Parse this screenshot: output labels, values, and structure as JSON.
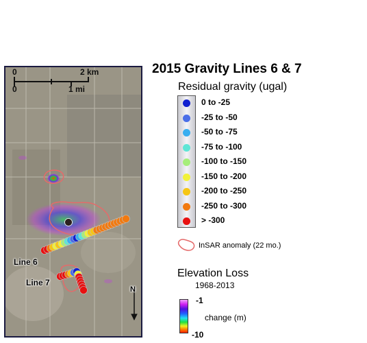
{
  "title": "2015 Gravity Lines 6 & 7",
  "map": {
    "scale_km_start": "0",
    "scale_km_end": "2 km",
    "scale_mi_start": "0",
    "scale_mi_end": "1 mi",
    "line6_label": "Line 6",
    "line7_label": "Line 7",
    "north_label": "N"
  },
  "legend": {
    "title": "Residual gravity (ugal)",
    "classes": [
      {
        "label": "0 to -25",
        "color": "#1020d0"
      },
      {
        "label": "-25 to -50",
        "color": "#4a6ee8"
      },
      {
        "label": "-50 to -75",
        "color": "#38aef0"
      },
      {
        "label": "-75 to -100",
        "color": "#5ee6d6"
      },
      {
        "label": "-100 to -150",
        "color": "#a6ee7a"
      },
      {
        "label": "-150 to -200",
        "color": "#f2f23a"
      },
      {
        "label": "-200 to -250",
        "color": "#f6c614"
      },
      {
        "label": "-250 to -300",
        "color": "#f27a10"
      },
      {
        "label": "> -300",
        "color": "#e81010"
      }
    ],
    "insar_label": "InSAR anomaly (22 mo.)"
  },
  "elevation": {
    "title": "Elevation Loss",
    "subtitle": "1968-2013",
    "max_label": "-1",
    "mid_label": "change (m)",
    "min_label": "-10"
  },
  "line6_colors": [
    "#e81010",
    "#e81010",
    "#f27a10",
    "#f6c614",
    "#f2f23a",
    "#f6c614",
    "#f2f23a",
    "#a6ee7a",
    "#5ee6d6",
    "#38aef0",
    "#4a6ee8",
    "#1020d0",
    "#38aef0",
    "#5ee6d6",
    "#a6ee7a",
    "#f2f23a",
    "#f6c614",
    "#f6c614",
    "#f27a10",
    "#f27a10",
    "#f27a10",
    "#f27a10",
    "#f27a10",
    "#f27a10",
    "#f27a10",
    "#f27a10",
    "#f27a10",
    "#f27a10",
    "#f27a10"
  ],
  "line7_colors": [
    "#e81010",
    "#e81010",
    "#e81010",
    "#f27a10",
    "#f6c614",
    "#4a6ee8",
    "#1020d0",
    "#f2f23a",
    "#e81010",
    "#e81010",
    "#e81010",
    "#e81010",
    "#e81010",
    "#e81010"
  ]
}
